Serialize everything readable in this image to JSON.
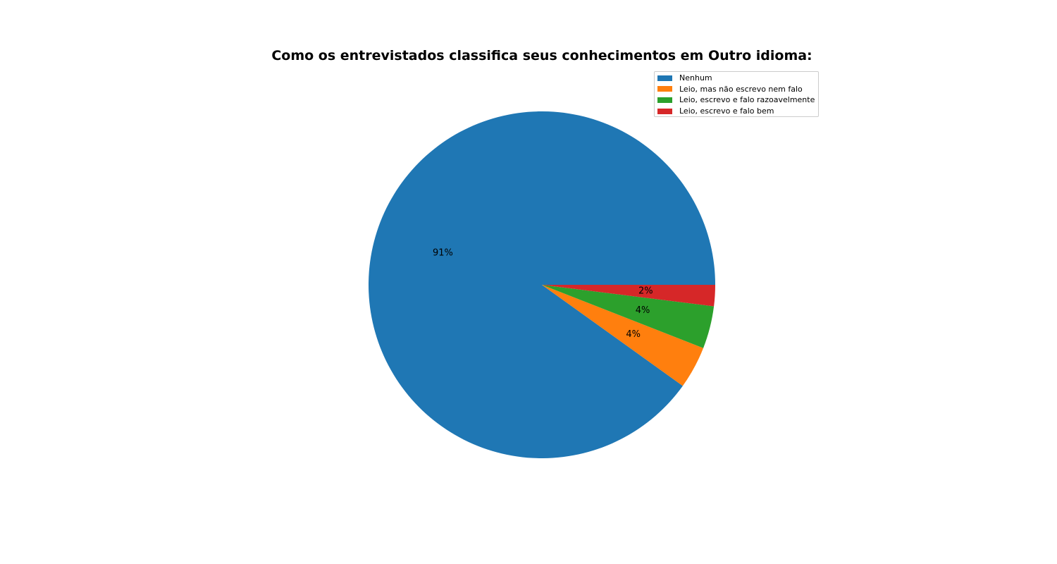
{
  "chart_data": {
    "type": "pie",
    "title": "Como os entrevistados classifica seus conhecimentos em Outro idioma:",
    "categories": [
      "Nenhum",
      "Leio, mas não escrevo nem falo",
      "Leio, escrevo e falo razoavelmente",
      "Leio, escrevo e falo bem"
    ],
    "values": [
      91,
      4,
      4,
      2
    ],
    "labels": [
      "91%",
      "4%",
      "4%",
      "2%"
    ],
    "colors": [
      "#1f77b4",
      "#ff7f0e",
      "#2ca02c",
      "#d62728"
    ],
    "start_angle_deg": 0,
    "direction": "counterclockwise",
    "legend_position": "upper-right"
  }
}
